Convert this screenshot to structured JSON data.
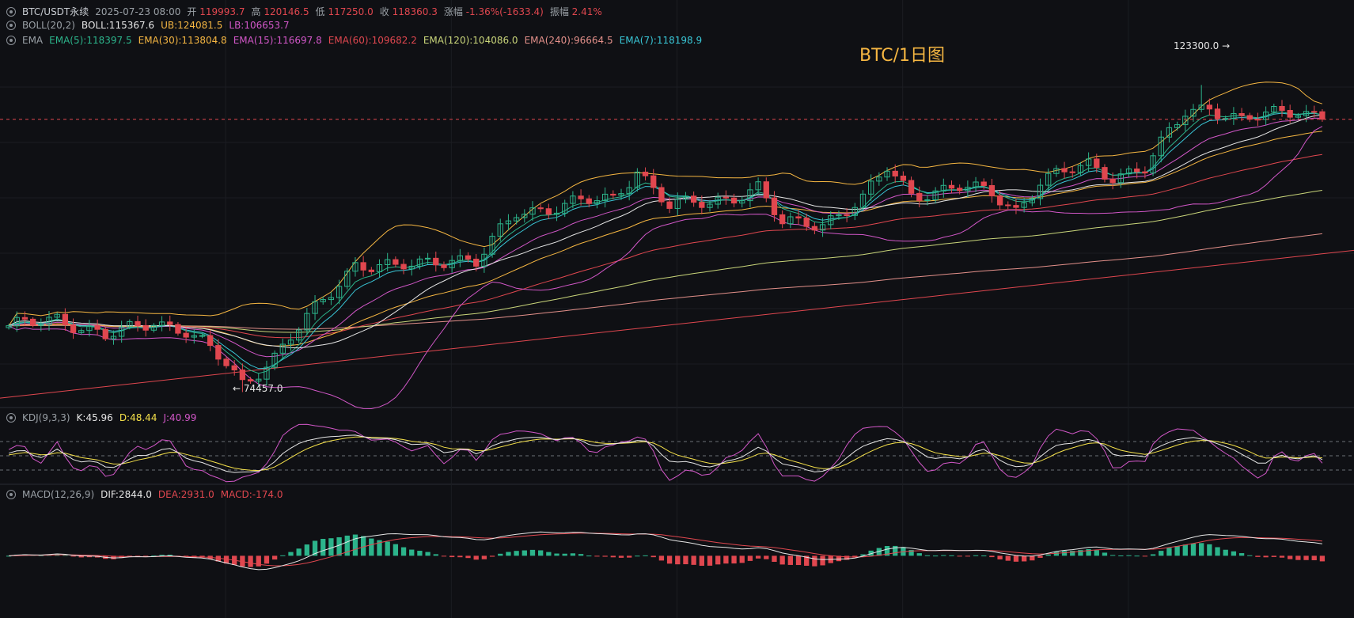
{
  "header": {
    "symbol": "BTC/USDT永续",
    "datetime": "2025-07-23 08:00",
    "open_label": "开",
    "open": "119993.7",
    "high_label": "高",
    "high": "120146.5",
    "low_label": "低",
    "low": "117250.0",
    "close_label": "收",
    "close": "118360.3",
    "change_label": "涨幅",
    "change": "-1.36%(-1633.4)",
    "amp_label": "振幅",
    "amp": "2.41%"
  },
  "boll": {
    "name": "BOLL(20,2)",
    "mid": "BOLL:115367.6",
    "ub": "UB:124081.5",
    "lb": "LB:106653.7"
  },
  "ema": {
    "name": "EMA",
    "items": [
      {
        "label": "EMA(5):118397.5",
        "color": "#2cb48b"
      },
      {
        "label": "EMA(30):113804.8",
        "color": "#f5b642"
      },
      {
        "label": "EMA(15):116697.8",
        "color": "#d257c8"
      },
      {
        "label": "EMA(60):109682.2",
        "color": "#e0474f"
      },
      {
        "label": "EMA(120):104086.0",
        "color": "#c9d57a"
      },
      {
        "label": "EMA(240):96664.5",
        "color": "#e3908a"
      },
      {
        "label": "EMA(7):118198.9",
        "color": "#39c6d6"
      }
    ]
  },
  "kdj": {
    "name": "KDJ(9,3,3)",
    "k": "K:45.96",
    "d": "D:48.44",
    "j": "J:40.99"
  },
  "macd": {
    "name": "MACD(12,26,9)",
    "dif": "DIF:2844.0",
    "dea": "DEA:2931.0",
    "macd": "MACD:-174.0"
  },
  "watermark": "BTC/1日图",
  "annotations": {
    "high": "123300.0 →",
    "low": "← 74457.0"
  },
  "chart_data": {
    "type": "candlestick",
    "title": "BTC/1日图",
    "anchors": [
      [
        0,
        84500
      ],
      [
        6,
        86500
      ],
      [
        12,
        83000
      ],
      [
        18,
        86000
      ],
      [
        22,
        84000
      ],
      [
        27,
        79000
      ],
      [
        29,
        76000
      ],
      [
        33,
        80000
      ],
      [
        36,
        84500
      ],
      [
        43,
        95000
      ],
      [
        48,
        94000
      ],
      [
        55,
        96000
      ],
      [
        58,
        95000
      ],
      [
        63,
        103000
      ],
      [
        70,
        104500
      ],
      [
        75,
        105000
      ],
      [
        78,
        110000
      ],
      [
        82,
        104000
      ],
      [
        87,
        104500
      ],
      [
        93,
        107000
      ],
      [
        96,
        101000
      ],
      [
        101,
        101500
      ],
      [
        106,
        105000
      ],
      [
        109,
        110000
      ],
      [
        112,
        106000
      ],
      [
        118,
        107000
      ],
      [
        122,
        106000
      ],
      [
        125,
        103500
      ],
      [
        128,
        108000
      ],
      [
        134,
        110500
      ],
      [
        137,
        109000
      ],
      [
        141,
        110000
      ],
      [
        146,
        119000
      ],
      [
        149,
        120000
      ],
      [
        153,
        117500
      ],
      [
        160,
        119500
      ],
      [
        163,
        118400
      ]
    ],
    "candle_count": 164,
    "ylim": [
      72000,
      128000
    ],
    "high_marker": 123300.0,
    "low_marker": 74457.0,
    "macd_ylim": [
      -9000,
      8000
    ],
    "kdj_ylim": [
      -10,
      110
    ]
  },
  "colors": {
    "up": "#2cb48b",
    "down": "#e0474f",
    "boll": "#f5b642",
    "bg": "#0f1014"
  }
}
